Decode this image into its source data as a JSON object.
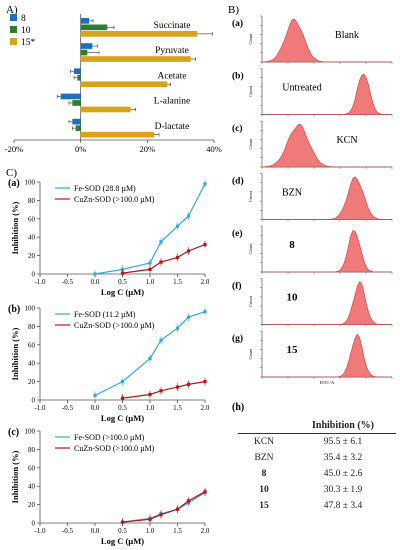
{
  "colors": {
    "s8": "#1f6fbd",
    "s10": "#2e7d32",
    "s15": "#d9a21b",
    "fe": "#3ba6dc",
    "cu": "#b01818",
    "hist": "#f07a7a",
    "hist_edge": "#d13b3b",
    "axis": "#555555"
  },
  "panels": {
    "A": "A)",
    "B": "B)",
    "C": "C)"
  },
  "chart_data": [
    {
      "id": "A",
      "type": "bar",
      "orientation": "horizontal",
      "categories": [
        "Succinate",
        "Pyruvate",
        "Acetate",
        "L-alanine",
        "D-lactate"
      ],
      "series": [
        {
          "name": "8",
          "values": [
            2.5,
            3.5,
            -2.0,
            -6.0,
            -2.5
          ],
          "errors": [
            1.2,
            1.5,
            1.0,
            1.0,
            1.0
          ]
        },
        {
          "name": "10",
          "values": [
            8.0,
            2.0,
            -1.0,
            -2.5,
            -1.5
          ],
          "errors": [
            2.0,
            3.5,
            1.0,
            1.0,
            1.0
          ]
        },
        {
          "name": "15*",
          "values": [
            35.0,
            33.0,
            26.0,
            15.0,
            22.0
          ],
          "errors": [
            4.5,
            1.5,
            1.0,
            1.5,
            1.5
          ]
        }
      ],
      "xlim": [
        -20,
        40
      ],
      "xticks": [
        "-20%",
        "0%",
        "20%",
        "40%"
      ],
      "xticks_vals": [
        -20,
        0,
        20,
        40
      ]
    },
    {
      "id": "C(a)",
      "type": "line",
      "label": "(a)",
      "xlabel": "Log C (µM)",
      "ylabel": "Inhibition (%)",
      "xlim": [
        -1.0,
        2.0
      ],
      "ylim": [
        0,
        100
      ],
      "xticks": [
        "-1.0",
        "-0.5",
        "0.0",
        "0.5",
        "1.0",
        "1.5",
        "2.0"
      ],
      "yticks": [
        "0",
        "20",
        "40",
        "60",
        "80",
        "100"
      ],
      "series": [
        {
          "name": "Fe-SOD (28.8 µM)",
          "color_key": "fe",
          "x": [
            0.0,
            0.5,
            1.0,
            1.2,
            1.5,
            1.7,
            2.0
          ],
          "y": [
            0,
            5,
            12,
            35,
            52,
            63,
            98
          ]
        },
        {
          "name": "CuZn-SOD (>100.0 µM)",
          "color_key": "cu",
          "x": [
            0.5,
            1.0,
            1.2,
            1.5,
            1.7,
            2.0
          ],
          "y": [
            1,
            5,
            13,
            18,
            25,
            32
          ]
        }
      ]
    },
    {
      "id": "C(b)",
      "type": "line",
      "label": "(b)",
      "xlabel": "Log C (µM)",
      "ylabel": "Inhibition (%)",
      "xlim": [
        -1.0,
        2.0
      ],
      "ylim": [
        0,
        100
      ],
      "xticks": [
        "-1.0",
        "-0.5",
        "0.0",
        "0.5",
        "1.0",
        "1.5",
        "2.0"
      ],
      "yticks": [
        "0",
        "20",
        "40",
        "60",
        "80",
        "100"
      ],
      "series": [
        {
          "name": "Fe-SOD (11.2 µM)",
          "color_key": "fe",
          "x": [
            0.0,
            0.5,
            1.0,
            1.2,
            1.5,
            1.7,
            2.0
          ],
          "y": [
            5,
            20,
            45,
            65,
            78,
            90,
            96
          ]
        },
        {
          "name": "CuZn-SOD (>100.0 µM)",
          "color_key": "cu",
          "x": [
            0.5,
            1.0,
            1.2,
            1.5,
            1.7,
            2.0
          ],
          "y": [
            2,
            6,
            10,
            14,
            17,
            20
          ]
        }
      ]
    },
    {
      "id": "C(c)",
      "type": "line",
      "label": "(c)",
      "xlabel": "Log C (µM)",
      "ylabel": "Inhibition (%)",
      "xlim": [
        -1.0,
        2.0
      ],
      "ylim": [
        0,
        100
      ],
      "xticks": [
        "-1.0",
        "-0.5",
        "0.0",
        "0.5",
        "1.0",
        "1.5",
        "2.0"
      ],
      "yticks": [
        "0",
        "20",
        "40",
        "60",
        "80",
        "100"
      ],
      "series": [
        {
          "name": "Fe-SOD (>100.0 µM)",
          "color_key": "fe",
          "x": [
            0.5,
            1.0,
            1.2,
            1.5,
            1.7,
            2.0
          ],
          "y": [
            1,
            5,
            10,
            15,
            22,
            33
          ]
        },
        {
          "name": "CuZn-SOD (>100.0 µM)",
          "color_key": "cu",
          "x": [
            0.5,
            1.0,
            1.2,
            1.5,
            1.7,
            2.0
          ],
          "y": [
            1,
            4,
            9,
            15,
            24,
            34
          ]
        }
      ]
    },
    {
      "id": "B",
      "type": "histogram",
      "xtitle": "FITC-A",
      "ytitle": "Count",
      "panels": [
        {
          "label": "(a)",
          "title": "Blank",
          "bold": false,
          "peak": 0.25,
          "width": 0.07
        },
        {
          "label": "(b)",
          "title": "Untreated",
          "bold": false,
          "peak": 0.78,
          "width": 0.045
        },
        {
          "label": "(c)",
          "title": "KCN",
          "bold": false,
          "peak": 0.28,
          "width": 0.08
        },
        {
          "label": "(d)",
          "title": "BZN",
          "bold": false,
          "peak": 0.72,
          "width": 0.06
        },
        {
          "label": "(e)",
          "title": "8",
          "bold": true,
          "peak": 0.71,
          "width": 0.045
        },
        {
          "label": "(f)",
          "title": "10",
          "bold": true,
          "peak": 0.75,
          "width": 0.045
        },
        {
          "label": "(g)",
          "title": "15",
          "bold": true,
          "peak": 0.73,
          "width": 0.045
        }
      ]
    }
  ],
  "table": {
    "label": "(h)",
    "header": "Inhibition (%)",
    "rows": [
      {
        "name": "KCN",
        "value": "95.5 ± 6.1",
        "bold": false
      },
      {
        "name": "BZN",
        "value": "35.4 ± 3.2",
        "bold": false
      },
      {
        "name": "8",
        "value": "45.0 ± 2.6",
        "bold": true
      },
      {
        "name": "10",
        "value": "30.3 ± 1.9",
        "bold": true
      },
      {
        "name": "15",
        "value": "47.8 ± 3.4",
        "bold": true
      }
    ]
  }
}
